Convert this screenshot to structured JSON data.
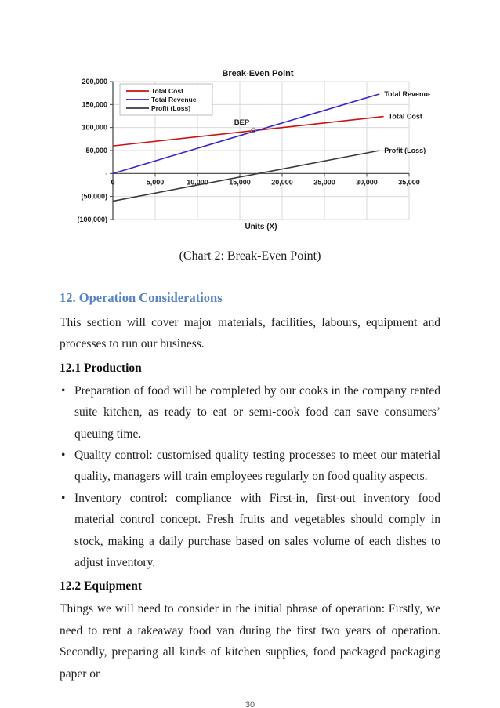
{
  "page": {
    "number": "30"
  },
  "caption": "(Chart 2: Break-Even Point)",
  "sections": {
    "heading": "12. Operation Considerations",
    "intro": "This section will cover major materials, facilities, labours, equipment and processes to run our business.",
    "production_heading": "12.1 Production",
    "bullet_char": "•",
    "production_bullets": [
      "Preparation of food will be completed by our cooks in the company rented suite kitchen, as ready to eat or semi-cook food can save consumers’ queuing time.",
      "Quality control: customised quality testing processes to meet our material quality, managers will train employees regularly on food quality aspects.",
      "Inventory control: compliance with First-in, first-out inventory food material control concept. Fresh fruits and vegetables should comply in stock, making a daily purchase based on sales volume of each dishes to adjust inventory."
    ],
    "equipment_heading": "12.2 Equipment",
    "equipment_text": "Things we will need to consider in the initial phrase of operation: Firstly, we need to rent a takeaway food van during the first two years of operation. Secondly, preparing all kinds of kitchen supplies, food packaged packaging paper or"
  },
  "colors": {
    "heading_blue": "#5585c2",
    "body_text": "#1f1f1f",
    "page_number_gray": "#595959",
    "grid_gray": "#d9d9d9",
    "axis_dark": "#404040",
    "chart_text": "#1a1a1a"
  },
  "chart_data": {
    "type": "line",
    "title": "Break-Even Point",
    "xlabel": "Units (X)",
    "ylabel": "",
    "x_range": [
      0,
      35000
    ],
    "y_range": [
      -100000,
      200000
    ],
    "grid": true,
    "legend_position": "top-left",
    "x_tick_values": [
      0,
      5000,
      10000,
      15000,
      20000,
      25000,
      30000,
      35000
    ],
    "x_tick_labels": [
      "0",
      "5,000",
      "10,000",
      "15,000",
      "20,000",
      "25,000",
      "30,000",
      "35,000"
    ],
    "y_tick_values": [
      200000,
      150000,
      100000,
      50000,
      0,
      -50000,
      -100000
    ],
    "y_tick_labels": [
      "200,000",
      "150,000",
      "100,000",
      "50,000",
      "-",
      "(50,000)",
      "(100,000)"
    ],
    "series": [
      {
        "name": "Total Cost",
        "color": "#cc1111",
        "x": [
          0,
          32000
        ],
        "y": [
          60000,
          124000
        ]
      },
      {
        "name": "Total Revenue",
        "color": "#3525cc",
        "x": [
          0,
          31500
        ],
        "y": [
          0,
          173000
        ]
      },
      {
        "name": "Profit (Loss)",
        "color": "#3a3a3a",
        "x": [
          0,
          31500
        ],
        "y": [
          -60000,
          50000
        ]
      }
    ],
    "annotations": [
      {
        "label": "BEP",
        "x": 16600,
        "y": 94000,
        "marker": "open-circle"
      }
    ]
  }
}
